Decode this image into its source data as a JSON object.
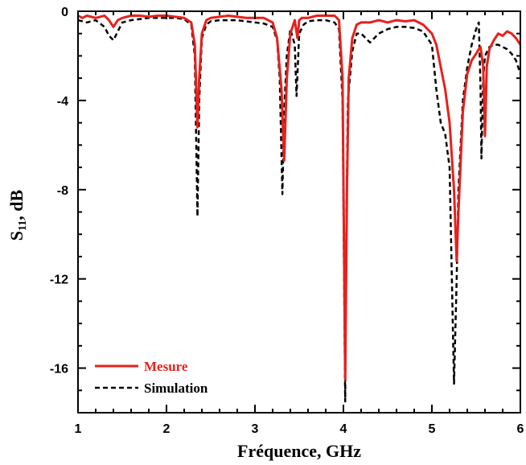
{
  "chart_data": {
    "type": "line",
    "title": "",
    "xlabel": "Fréquence, GHz",
    "ylabel_main": "S",
    "ylabel_sub": "11",
    "ylabel_rest": ", dB",
    "xlim": [
      1,
      6
    ],
    "ylim": [
      -18,
      0
    ],
    "x_ticks": [
      1,
      2,
      3,
      4,
      5,
      6
    ],
    "y_ticks": [
      0,
      -4,
      -8,
      -12,
      -16
    ],
    "grid": false,
    "legend_position": "bottom-left",
    "series": [
      {
        "name": "Mesure",
        "color": "#e8201c",
        "style": "solid",
        "x": [
          1.0,
          1.05,
          1.1,
          1.2,
          1.3,
          1.35,
          1.4,
          1.45,
          1.5,
          1.6,
          1.7,
          1.8,
          1.9,
          2.0,
          2.1,
          2.2,
          2.28,
          2.32,
          2.35,
          2.37,
          2.4,
          2.45,
          2.5,
          2.6,
          2.7,
          2.8,
          2.9,
          3.0,
          3.1,
          3.2,
          3.25,
          3.3,
          3.33,
          3.36,
          3.4,
          3.45,
          3.48,
          3.5,
          3.53,
          3.6,
          3.7,
          3.8,
          3.9,
          3.95,
          3.99,
          4.02,
          4.04,
          4.06,
          4.1,
          4.15,
          4.2,
          4.3,
          4.4,
          4.5,
          4.6,
          4.7,
          4.8,
          4.9,
          5.0,
          5.05,
          5.1,
          5.15,
          5.2,
          5.25,
          5.28,
          5.3,
          5.35,
          5.4,
          5.45,
          5.5,
          5.53,
          5.55,
          5.58,
          5.6,
          5.62,
          5.65,
          5.7,
          5.75,
          5.8,
          5.85,
          5.9,
          5.95,
          6.0
        ],
        "y": [
          -0.2,
          -0.3,
          -0.2,
          -0.3,
          -0.2,
          -0.4,
          -0.7,
          -0.4,
          -0.3,
          -0.2,
          -0.2,
          -0.25,
          -0.2,
          -0.2,
          -0.25,
          -0.3,
          -0.5,
          -1.5,
          -5.2,
          -3.0,
          -1.0,
          -0.4,
          -0.3,
          -0.25,
          -0.2,
          -0.25,
          -0.3,
          -0.3,
          -0.3,
          -0.5,
          -1.2,
          -3.5,
          -6.7,
          -3.0,
          -1.0,
          -0.4,
          -1.2,
          -0.4,
          -0.3,
          -0.3,
          -0.2,
          -0.2,
          -0.2,
          -0.4,
          -3.0,
          -16.5,
          -8.0,
          -3.0,
          -1.2,
          -0.6,
          -0.5,
          -0.5,
          -0.4,
          -0.5,
          -0.4,
          -0.45,
          -0.4,
          -0.6,
          -1.0,
          -1.5,
          -2.5,
          -3.5,
          -5.0,
          -8.0,
          -11.2,
          -9.0,
          -4.5,
          -2.8,
          -2.2,
          -1.9,
          -1.7,
          -1.6,
          -2.5,
          -5.6,
          -2.5,
          -1.7,
          -1.3,
          -1.0,
          -1.1,
          -0.9,
          -1.0,
          -1.2,
          -1.5
        ]
      },
      {
        "name": "Simulation",
        "color": "#000000",
        "style": "dashed",
        "x": [
          1.0,
          1.1,
          1.2,
          1.3,
          1.35,
          1.4,
          1.45,
          1.5,
          1.6,
          1.7,
          1.8,
          1.9,
          2.0,
          2.1,
          2.2,
          2.28,
          2.32,
          2.35,
          2.37,
          2.4,
          2.45,
          2.5,
          2.6,
          2.7,
          2.8,
          2.9,
          3.0,
          3.1,
          3.2,
          3.25,
          3.28,
          3.31,
          3.33,
          3.36,
          3.4,
          3.45,
          3.47,
          3.5,
          3.55,
          3.6,
          3.7,
          3.8,
          3.9,
          3.95,
          3.99,
          4.02,
          4.03,
          4.05,
          4.1,
          4.15,
          4.2,
          4.25,
          4.3,
          4.4,
          4.5,
          4.6,
          4.7,
          4.8,
          4.9,
          5.0,
          5.05,
          5.1,
          5.15,
          5.2,
          5.25,
          5.28,
          5.3,
          5.35,
          5.4,
          5.45,
          5.5,
          5.53,
          5.55,
          5.56,
          5.58,
          5.6,
          5.65,
          5.7,
          5.75,
          5.8,
          5.85,
          5.9,
          5.95,
          6.0
        ],
        "y": [
          -0.4,
          -0.5,
          -0.4,
          -0.7,
          -1.1,
          -1.3,
          -0.9,
          -0.5,
          -0.4,
          -0.35,
          -0.3,
          -0.3,
          -0.3,
          -0.3,
          -0.35,
          -0.6,
          -2.0,
          -9.2,
          -4.0,
          -1.2,
          -0.6,
          -0.45,
          -0.4,
          -0.4,
          -0.4,
          -0.45,
          -0.5,
          -0.55,
          -0.7,
          -1.3,
          -3.0,
          -8.2,
          -4.5,
          -2.0,
          -0.8,
          -1.5,
          -3.8,
          -1.0,
          -0.6,
          -0.45,
          -0.4,
          -0.4,
          -0.5,
          -0.8,
          -4.0,
          -17.5,
          -11.0,
          -4.0,
          -1.8,
          -1.0,
          -1.0,
          -1.2,
          -1.4,
          -1.0,
          -0.8,
          -0.7,
          -0.7,
          -0.75,
          -0.9,
          -1.5,
          -3.5,
          -5.0,
          -5.5,
          -7.0,
          -16.7,
          -12.0,
          -8.0,
          -4.0,
          -2.5,
          -1.5,
          -0.8,
          -0.5,
          -3.5,
          -6.6,
          -3.0,
          -2.0,
          -1.6,
          -1.5,
          -1.5,
          -1.6,
          -1.7,
          -1.9,
          -2.2,
          -2.8
        ]
      }
    ]
  }
}
